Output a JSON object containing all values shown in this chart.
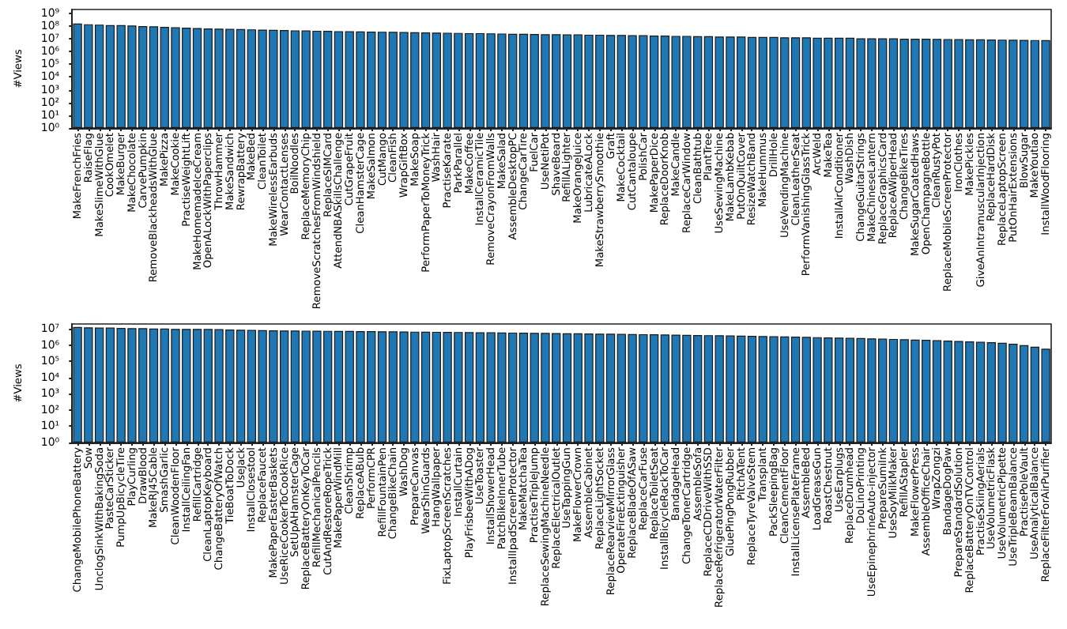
{
  "chart_data": [
    {
      "type": "bar",
      "ylabel": "#Views",
      "log": "y",
      "grid": false,
      "color": "#1f77b4",
      "ylim": [
        1,
        2000000000.0
      ],
      "yticks": [
        {
          "value": 1,
          "label": "10⁰"
        },
        {
          "value": 10,
          "label": "10¹"
        },
        {
          "value": 100,
          "label": "10²"
        },
        {
          "value": 1000,
          "label": "10³"
        },
        {
          "value": 10000,
          "label": "10⁴"
        },
        {
          "value": 100000,
          "label": "10⁵"
        },
        {
          "value": 1000000,
          "label": "10⁶"
        },
        {
          "value": 10000000,
          "label": "10⁷"
        },
        {
          "value": 100000000,
          "label": "10⁸"
        },
        {
          "value": 1000000000,
          "label": "10⁹"
        }
      ],
      "categories": [
        "MakeFrenchFries",
        "RaiseFlag",
        "MakeSlimeWithGlue",
        "CookOmelet",
        "MakeBurger",
        "MakeChocolate",
        "CarvePumpkin",
        "RemoveBlackheadsWithGlue",
        "MakePizza",
        "MakeCookie",
        "PractiseWeightLift",
        "MakeHomemadeIceCream",
        "OpenALockWithPaperclips",
        "ThrowHammer",
        "MakeSandwich",
        "RewrapBattery",
        "MakeBed",
        "CleanToilet",
        "MakeWirelessEarbuds",
        "WearContactLenses",
        "BoilNoodles",
        "ReplaceMemoryChip",
        "RemoveScratchesFromWindshield",
        "ReplaceSIMCard",
        "AttendNBASkillsChallenge",
        "CutGrapeFruit",
        "CleanHamsterCage",
        "MakeSalmon",
        "CutMango",
        "CleanFish",
        "WrapGiftBox",
        "MakeSoap",
        "PerformPaperToMoneyTrick",
        "WashHair",
        "PractiseKarate",
        "ParkParallel",
        "MakeCoffee",
        "InstallCeramicTile",
        "RemoveCrayonFromWalls",
        "MakeSalad",
        "AssembleDesktopPC",
        "ChangeCarTire",
        "FuelCar",
        "UseNetiPot",
        "ShaveBeard",
        "RefillALighter",
        "MakeOrangeJuice",
        "LubricateALock",
        "MakeStrawberrySmoothie",
        "Graft",
        "MakeCocktail",
        "CutCantaloupe",
        "PolishCar",
        "MakePaperDice",
        "ReplaceDoorKnob",
        "MakeCandle",
        "ReplaceCarWindow",
        "CleanBathtub",
        "PlantTree",
        "UseSewingMachine",
        "MakeLambKebab",
        "PutOnQuiltCover",
        "ResizeWatchBand",
        "MakeHummus",
        "DrillHole",
        "UseVendingMachine",
        "CleanLeatherSeat",
        "PerformVanishingGlassTrick",
        "ArcWeld",
        "MakeTea",
        "InstallAirConditioner",
        "WashDish",
        "ChangeGuitarStrings",
        "MakeChineseLantern",
        "ReplaceGraphicsCard",
        "ReplaceAWiperHead",
        "ChangeBikeTires",
        "MakeSugarCoatedHaws",
        "OpenChampagneBottle",
        "CleanRustyPot",
        "ReplaceMobileScreenProtector",
        "IronClothes",
        "MakePickles",
        "GiveAnIntramuscularInjection",
        "ReplaceHardDisk",
        "ReplaceLaptopScreen",
        "PutOnHairExtensions",
        "BlowSugar",
        "MakeYoutiao",
        "InstallWoodFlooring"
      ],
      "values": [
        160000000.0,
        140000000.0,
        130000000.0,
        120000000.0,
        120000000.0,
        110000000.0,
        100000000.0,
        95000000.0,
        85000000.0,
        80000000.0,
        75000000.0,
        70000000.0,
        65000000.0,
        63000000.0,
        60000000.0,
        58000000.0,
        55000000.0,
        53000000.0,
        50000000.0,
        48000000.0,
        46000000.0,
        45000000.0,
        43000000.0,
        42000000.0,
        40000000.0,
        39000000.0,
        38000000.0,
        37000000.0,
        36000000.0,
        35000000.0,
        34000000.0,
        33000000.0,
        32000000.0,
        31000000.0,
        30000000.0,
        29000000.0,
        28000000.0,
        28000000.0,
        27000000.0,
        26000000.0,
        25000000.0,
        25000000.0,
        24000000.0,
        23000000.0,
        23000000.0,
        22000000.0,
        22000000.0,
        21000000.0,
        21000000.0,
        20000000.0,
        20000000.0,
        19000000.0,
        19000000.0,
        18000000.0,
        18000000.0,
        17000000.0,
        17000000.0,
        16000000.0,
        16000000.0,
        15000000.0,
        15000000.0,
        15000000.0,
        14000000.0,
        14000000.0,
        14000000.0,
        13000000.0,
        13000000.0,
        13000000.0,
        12000000.0,
        12000000.0,
        12000000.0,
        12000000.0,
        11000000.0,
        11000000.0,
        11000000.0,
        11000000.0,
        10000000.0,
        10000000.0,
        10000000.0,
        9800000.0,
        9600000.0,
        9400000.0,
        9200000.0,
        9000000.0,
        8800000.0,
        8600000.0,
        8400000.0,
        8200000.0,
        8000000.0,
        7800000.0
      ]
    },
    {
      "type": "bar",
      "ylabel": "#Views",
      "log": "y",
      "grid": false,
      "color": "#1f77b4",
      "ylim": [
        1,
        20000000.0
      ],
      "yticks": [
        {
          "value": 1,
          "label": "10⁰"
        },
        {
          "value": 10,
          "label": "10¹"
        },
        {
          "value": 100,
          "label": "10²"
        },
        {
          "value": 1000,
          "label": "10³"
        },
        {
          "value": 10000,
          "label": "10⁴"
        },
        {
          "value": 100000,
          "label": "10⁵"
        },
        {
          "value": 1000000,
          "label": "10⁶"
        },
        {
          "value": 10000000,
          "label": "10⁷"
        }
      ],
      "categories": [
        "ChangeMobilePhoneBattery",
        "Sow",
        "UnclogSinkWithBakingSoda",
        "PasteCarSticker",
        "PumpUpBicycleTire",
        "PlayCurling",
        "DrawBlood",
        "MakeRJ45Cable",
        "SmashGarlic",
        "CleanWoodenFloor",
        "InstallCeilingFan",
        "RefillCartridge",
        "CleanLaptopKeyboard",
        "ChangeBatteryOfWatch",
        "TieBoatToDock",
        "UseJack",
        "InstallClosestool",
        "ReplaceFaucet",
        "MakePaperEasterBaskets",
        "UseRiceCookerToCookRice",
        "SetUpAHamsterCage",
        "ReplaceBatteryOnKeyToCar",
        "RefillMechanicalPencils",
        "CutAndRestoreRopeTrick",
        "MakePaperWindMill",
        "CleanShrimp",
        "ReplaceABulb",
        "PerformCPR",
        "RefillFountainPen",
        "ChangeBikeChain",
        "WashDog",
        "PrepareCanvas",
        "WearShinGuards",
        "HangWallpaper",
        "FixLaptopScreenScratches",
        "InstallCurtain",
        "PlayFrisbeeWithADog",
        "UseToaster",
        "InstallShowerHead",
        "PatchBikeInnerTube",
        "InstallIpadScreenProtector",
        "MakeMatchaTea",
        "PractiseTripleJump",
        "ReplaceSewingMachineNeedle",
        "ReplaceElectricalOutlet",
        "UseTappingGun",
        "MakeFlowerCrown",
        "AssembleCabinet",
        "ReplaceLightSocket",
        "ReplaceRearviewMirrorGlass",
        "OperateFireExtinguisher",
        "ReplaceBladeOfASaw",
        "ReplaceCarFuse",
        "ReplaceToiletSeat",
        "InstallBicycleRackToCar",
        "BandageHead",
        "ChangeTonerCartridge",
        "AssembleSofa",
        "ReplaceCDDriveWithSSD",
        "ReplaceRefrigeratorWaterFilter",
        "GluePingPongRubber",
        "PitchATent",
        "ReplaceTyreValveStem",
        "Transplant",
        "PackSleepingBag",
        "CleanCementFloor",
        "InstallLicensePlateFrame",
        "AssembleBed",
        "LoadGreaseGun",
        "RoastChestnut",
        "UseEarplugs",
        "ReplaceDrumhead",
        "DoLinoPrinting",
        "UseEpinephrineAuto-injector",
        "PrepareSumiInk",
        "UseSoyMilkMaker",
        "RefillAStapler",
        "MakeFlowerPress",
        "AssembleOfficeChair",
        "WrapZongzi",
        "BandageDogPaw",
        "PrepareStandardSolution",
        "ReplaceBatteryOnTVControl",
        "PractiseSkiingAerials",
        "UseVolumetricFlask",
        "UseVolumetricPipette",
        "UseTripleBeamBalance",
        "PractisePoleVault",
        "UseAnalyticalBalance",
        "ReplaceFilterForAirPurifier"
      ],
      "values": [
        13000000.0,
        12500000.0,
        12000000.0,
        12000000.0,
        11500000.0,
        11000000.0,
        11000000.0,
        10500000.0,
        10500000.0,
        10000000.0,
        10000000.0,
        10000000.0,
        9800000.0,
        9600000.0,
        9000000.0,
        8800000.0,
        8600000.0,
        8400000.0,
        8200000.0,
        8000000.0,
        7900000.0,
        7800000.0,
        7700000.0,
        7600000.0,
        7500000.0,
        7400000.0,
        7300000.0,
        7200000.0,
        7100000.0,
        7000000.0,
        6900000.0,
        6800000.0,
        6700000.0,
        6600000.0,
        6500000.0,
        6400000.0,
        6300000.0,
        6200000.0,
        6100000.0,
        6000000.0,
        5900000.0,
        5800000.0,
        5700000.0,
        5600000.0,
        5500000.0,
        5400000.0,
        5300000.0,
        5200000.0,
        5100000.0,
        5000000.0,
        4900000.0,
        4800000.0,
        4700000.0,
        4600000.0,
        4500000.0,
        4400000.0,
        4300000.0,
        4200000.0,
        4100000.0,
        4000000.0,
        3900000.0,
        3800000.0,
        3700000.0,
        3600000.0,
        3500000.0,
        3400000.0,
        3300000.0,
        3200000.0,
        3100000.0,
        3000000.0,
        2900000.0,
        2800000.0,
        2700000.0,
        2600000.0,
        2500000.0,
        2400000.0,
        2300000.0,
        2200000.0,
        2100000.0,
        2000000.0,
        1900000.0,
        1800000.0,
        1700000.0,
        1600000.0,
        1500000.0,
        1400000.0,
        1200000.0,
        1000000.0,
        800000.0,
        600000.0
      ]
    }
  ]
}
